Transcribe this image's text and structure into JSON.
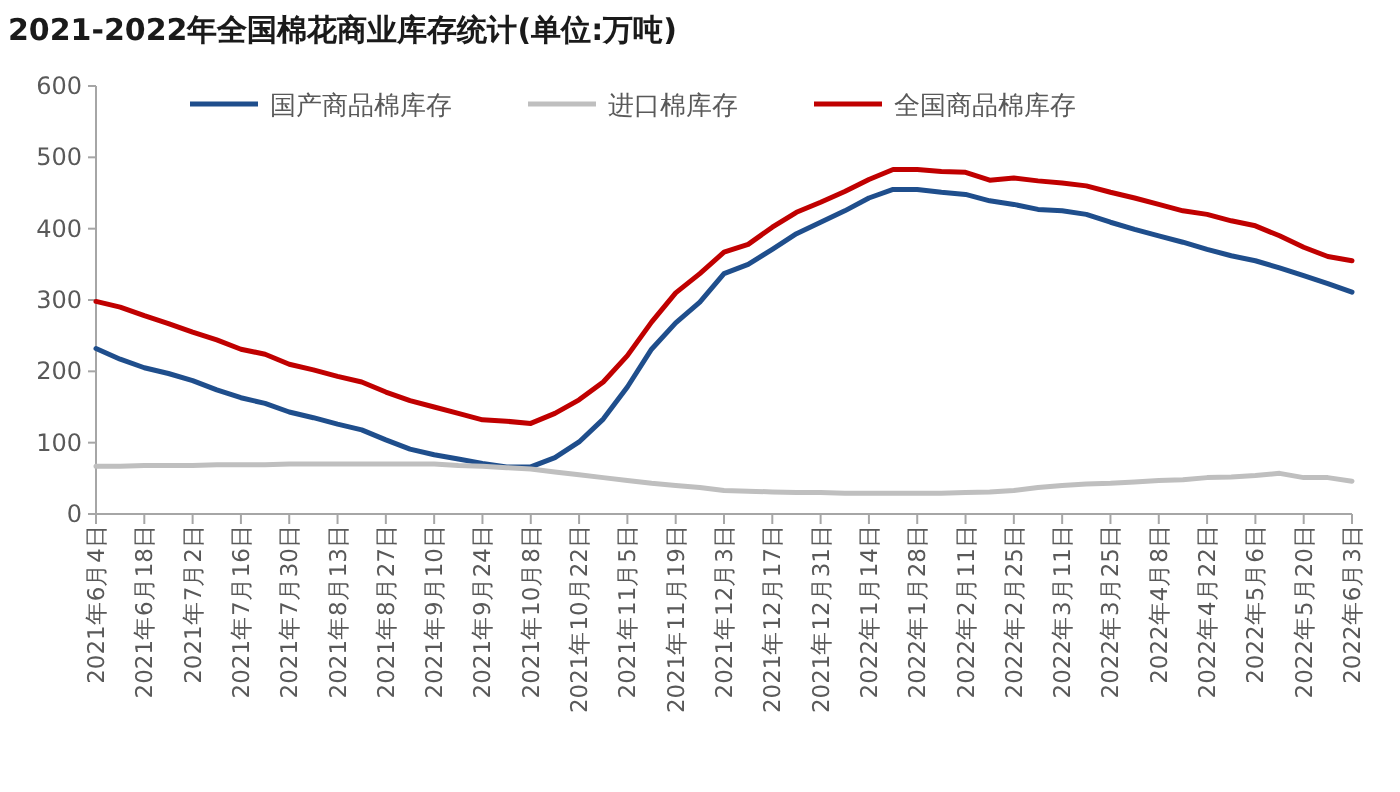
{
  "chart_data": {
    "type": "line",
    "title": "2021-2022年全国棉花商业库存统计(单位:万吨)",
    "categories": [
      "2021年6月4日",
      null,
      "2021年6月18日",
      null,
      "2021年7月2日",
      null,
      "2021年7月16日",
      null,
      "2021年7月30日",
      null,
      "2021年8月13日",
      null,
      "2021年8月27日",
      null,
      "2021年9月10日",
      null,
      "2021年9月24日",
      null,
      "2021年10月8日",
      null,
      "2021年10月22日",
      null,
      "2021年11月5日",
      null,
      "2021年11月19日",
      null,
      "2021年12月3日",
      null,
      "2021年12月17日",
      null,
      "2021年12月31日",
      null,
      "2022年1月14日",
      null,
      "2022年1月28日",
      null,
      "2022年2月11日",
      null,
      "2022年2月25日",
      null,
      "2022年3月11日",
      null,
      "2022年3月25日",
      null,
      "2022年4月8日",
      null,
      "2022年4月22日",
      null,
      "2022年5月6日",
      null,
      "2022年5月20日",
      null,
      "2022年6月3日"
    ],
    "series": [
      {
        "name": "国产商品棉库存",
        "color": "#1f4e8c",
        "values": [
          232,
          217,
          205,
          197,
          187,
          174,
          163,
          155,
          143,
          135,
          126,
          118,
          104,
          91,
          83,
          77,
          71,
          66,
          66,
          79,
          101,
          133,
          178,
          231,
          268,
          297,
          337,
          350,
          371,
          393,
          409,
          425,
          443,
          455,
          455,
          451,
          448,
          439,
          434,
          427,
          425,
          420,
          409,
          399,
          390,
          381,
          371,
          362,
          355,
          345,
          334,
          323,
          311
        ]
      },
      {
        "name": "进口棉库存",
        "color": "#bfbfbf",
        "values": [
          67,
          67,
          68,
          68,
          68,
          69,
          69,
          69,
          70,
          70,
          70,
          70,
          70,
          70,
          70,
          68,
          67,
          65,
          63,
          59,
          55,
          51,
          47,
          43,
          40,
          37,
          33,
          32,
          31,
          30,
          30,
          29,
          29,
          29,
          29,
          29,
          30,
          31,
          33,
          37,
          40,
          42,
          43,
          45,
          47,
          48,
          51,
          52,
          54,
          57,
          51,
          51,
          46
        ]
      },
      {
        "name": "全国商品棉库存",
        "color": "#c00000",
        "values": [
          298,
          290,
          278,
          267,
          255,
          244,
          231,
          224,
          210,
          202,
          193,
          185,
          171,
          159,
          150,
          141,
          132,
          130,
          127,
          141,
          160,
          185,
          222,
          269,
          310,
          337,
          367,
          378,
          402,
          423,
          437,
          452,
          469,
          483,
          483,
          480,
          479,
          468,
          471,
          467,
          464,
          460,
          451,
          443,
          434,
          425,
          420,
          411,
          404,
          390,
          374,
          361,
          355
        ]
      }
    ],
    "ylim": [
      0,
      600
    ],
    "yticks": [
      0,
      100,
      200,
      300,
      400,
      500,
      600
    ],
    "legend": "top"
  }
}
